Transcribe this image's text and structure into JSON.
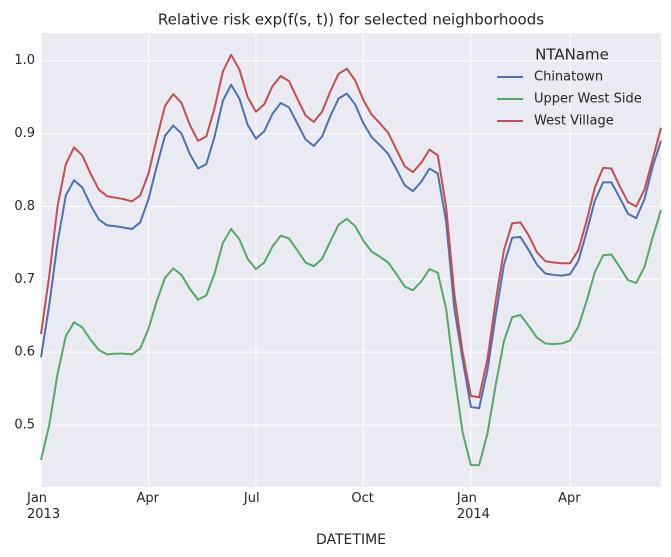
{
  "chart_data": {
    "type": "line",
    "title": "Relative risk exp(f(s, t)) for selected neighborhoods",
    "xlabel": "DATETIME",
    "legend_title": "NTAName",
    "legend": "upper right",
    "grid": true,
    "categories": [
      "Jan\n2013",
      null,
      null,
      null,
      null,
      null,
      null,
      null,
      null,
      null,
      null,
      null,
      null,
      "Apr",
      null,
      null,
      null,
      null,
      null,
      null,
      null,
      null,
      null,
      null,
      null,
      null,
      "Jul",
      null,
      null,
      null,
      null,
      null,
      null,
      null,
      null,
      null,
      null,
      null,
      null,
      "Oct",
      null,
      null,
      null,
      null,
      null,
      null,
      null,
      null,
      null,
      null,
      null,
      null,
      "Jan\n2014",
      null,
      null,
      null,
      null,
      null,
      null,
      null,
      null,
      null,
      null,
      null,
      "Apr",
      null,
      null,
      null,
      null,
      null,
      null,
      null,
      null,
      null,
      null,
      null
    ],
    "ylim": [
      0.415,
      1.038
    ],
    "yticks": [
      0.5,
      0.6,
      0.7,
      0.8,
      0.9,
      {
        "value": 1,
        "label": "1.0"
      }
    ],
    "series": [
      {
        "name": "Chinatown",
        "color": "#4c72b0",
        "values": [
          0.593,
          0.665,
          0.75,
          0.815,
          0.836,
          0.826,
          0.802,
          0.782,
          0.774,
          0.773,
          0.771,
          0.769,
          0.778,
          0.81,
          0.855,
          0.897,
          0.911,
          0.9,
          0.872,
          0.852,
          0.858,
          0.896,
          0.945,
          0.967,
          0.948,
          0.912,
          0.893,
          0.903,
          0.927,
          0.942,
          0.936,
          0.914,
          0.892,
          0.883,
          0.896,
          0.924,
          0.948,
          0.955,
          0.94,
          0.914,
          0.895,
          0.884,
          0.872,
          0.851,
          0.829,
          0.821,
          0.834,
          0.852,
          0.845,
          0.78,
          0.66,
          0.59,
          0.525,
          0.523,
          0.575,
          0.65,
          0.72,
          0.757,
          0.758,
          0.74,
          0.72,
          0.708,
          0.706,
          0.705,
          0.707,
          0.725,
          0.765,
          0.808,
          0.833,
          0.833,
          0.812,
          0.79,
          0.784,
          0.81,
          0.855,
          0.89
        ]
      },
      {
        "name": "Upper West Side",
        "color": "#55a868",
        "values": [
          0.452,
          0.5,
          0.57,
          0.622,
          0.641,
          0.634,
          0.617,
          0.603,
          0.597,
          0.598,
          0.598,
          0.597,
          0.605,
          0.632,
          0.67,
          0.702,
          0.715,
          0.706,
          0.687,
          0.672,
          0.678,
          0.708,
          0.75,
          0.769,
          0.755,
          0.728,
          0.714,
          0.723,
          0.745,
          0.76,
          0.756,
          0.74,
          0.723,
          0.718,
          0.728,
          0.752,
          0.775,
          0.783,
          0.773,
          0.753,
          0.738,
          0.731,
          0.723,
          0.707,
          0.69,
          0.685,
          0.697,
          0.714,
          0.709,
          0.66,
          0.57,
          0.49,
          0.445,
          0.445,
          0.488,
          0.555,
          0.615,
          0.648,
          0.651,
          0.636,
          0.62,
          0.612,
          0.611,
          0.612,
          0.616,
          0.635,
          0.67,
          0.71,
          0.733,
          0.734,
          0.717,
          0.699,
          0.695,
          0.717,
          0.758,
          0.795
        ]
      },
      {
        "name": "West Village",
        "color": "#c44e52",
        "values": [
          0.625,
          0.705,
          0.8,
          0.858,
          0.881,
          0.87,
          0.845,
          0.823,
          0.814,
          0.812,
          0.81,
          0.807,
          0.815,
          0.845,
          0.893,
          0.938,
          0.954,
          0.942,
          0.912,
          0.89,
          0.896,
          0.935,
          0.985,
          1.008,
          0.988,
          0.95,
          0.93,
          0.94,
          0.965,
          0.979,
          0.972,
          0.948,
          0.925,
          0.916,
          0.93,
          0.958,
          0.982,
          0.989,
          0.973,
          0.946,
          0.926,
          0.914,
          0.901,
          0.878,
          0.855,
          0.847,
          0.86,
          0.878,
          0.87,
          0.8,
          0.68,
          0.6,
          0.54,
          0.538,
          0.59,
          0.67,
          0.74,
          0.777,
          0.778,
          0.76,
          0.737,
          0.725,
          0.723,
          0.722,
          0.722,
          0.74,
          0.78,
          0.826,
          0.853,
          0.852,
          0.828,
          0.806,
          0.8,
          0.823,
          0.865,
          0.908
        ]
      }
    ]
  }
}
